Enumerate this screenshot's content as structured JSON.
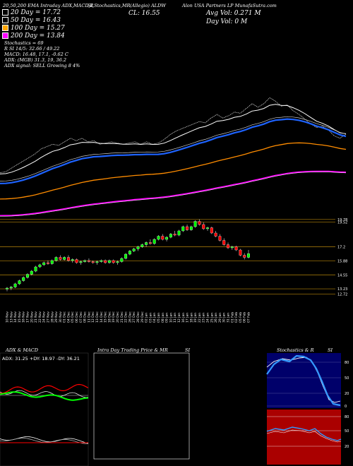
{
  "header": {
    "top_left": "20,50,200 EMA Intraday ADX,MACD,R",
    "top_mid": "SI,Stochastics,MR",
    "top_symbol": "(Allegio) ALDW",
    "top_right": "Alon USA Partners LP MunafaSutra.com",
    "close_label": "CL: 16.55",
    "avg_vol": "Avg Vol: 0.271 M",
    "day_vol": "Day Vol: 0   M"
  },
  "legend": [
    {
      "label": "20  Day = 17.72",
      "swatch": "#ffffff"
    },
    {
      "label": "50  Day = 16.43",
      "swatch": "#000000"
    },
    {
      "label": "100  Day = 15.27",
      "swatch": "#ffa500"
    },
    {
      "label": "200  Day = 13.84",
      "swatch": "#ff00ff"
    }
  ],
  "indicators": {
    "stochastics": "Stochastics = 69",
    "r_si": "R             SI 14/5: 32.66  / 49.22",
    "macd": "MACD: 16.48, 17.1, -0.62  C",
    "adx": "ADX:                        (MGB) 31.3, 19, 36.2",
    "adx_signal": "ADX  signal: SELL Growing 8 4%"
  },
  "panels": {
    "adx_title": "ADX  & MACD",
    "intraday_title": "Intra Day Trading Price  & MR",
    "intraday_si": "SI",
    "stoch_title": "Stochastics & R",
    "stoch_si": "SI",
    "adx_values": "ADX: 31.25 +DY: 18.97 -DY: 36.21"
  },
  "right_scale": {
    "labels": [
      "19.78",
      "19.52",
      "17.2",
      "15.88",
      "14.55",
      "13.23",
      "12.72"
    ],
    "stoch_ticks": [
      "80",
      "50",
      "20",
      "0"
    ],
    "rsi_ticks": [
      "80",
      "50",
      "20"
    ]
  },
  "colors": {
    "up": "#00ff00",
    "down": "#ff0000",
    "ema50": "#1e63ff",
    "ema100": "#ff8c00",
    "ema200": "#ff00ff",
    "grid": "#b8860b",
    "rsi_panel": "#aa0000",
    "stoch_panel": "#00006a"
  },
  "chart_data": {
    "type": "candlestick",
    "dates": [
      "10 Nov",
      "13 Nov",
      "14 Nov",
      "15 Nov",
      "16 Nov",
      "17 Nov",
      "20 Nov",
      "21 Nov",
      "22 Nov",
      "24 Nov",
      "27 Nov",
      "28 Nov",
      "29 Nov",
      "30 Nov",
      "01 Dec",
      "04 Dec",
      "05 Dec",
      "06 Dec",
      "07 Dec",
      "08 Dec",
      "11 Dec",
      "12 Dec",
      "13 Dec",
      "14 Dec",
      "15 Dec",
      "18 Dec",
      "19 Dec",
      "20 Dec",
      "21 Dec",
      "22 Dec",
      "26 Dec",
      "27 Dec",
      "28 Dec",
      "29 Dec",
      "02 Jan",
      "03 Jan",
      "04 Jan",
      "05 Jan",
      "08 Jan",
      "09 Jan",
      "10 Jan",
      "11 Jan",
      "12 Jan",
      "16 Jan",
      "17 Jan",
      "18 Jan",
      "19 Jan",
      "22 Jan",
      "23 Jan",
      "24 Jan",
      "25 Jan",
      "26 Jan",
      "29 Jan",
      "30 Jan",
      "31 Jan",
      "01 Feb",
      "02 Feb",
      "05 Feb",
      "06 Feb",
      "07 Feb"
    ],
    "candles": [
      {
        "o": 13.2,
        "h": 13.4,
        "l": 13.0,
        "c": 13.3
      },
      {
        "o": 13.3,
        "h": 13.5,
        "l": 13.1,
        "c": 13.4
      },
      {
        "o": 13.4,
        "h": 13.8,
        "l": 13.3,
        "c": 13.7
      },
      {
        "o": 13.7,
        "h": 14.1,
        "l": 13.6,
        "c": 14.0
      },
      {
        "o": 14.0,
        "h": 14.4,
        "l": 13.9,
        "c": 14.3
      },
      {
        "o": 14.3,
        "h": 14.7,
        "l": 14.2,
        "c": 14.6
      },
      {
        "o": 14.6,
        "h": 15.0,
        "l": 14.5,
        "c": 14.9
      },
      {
        "o": 14.9,
        "h": 15.4,
        "l": 14.8,
        "c": 15.3
      },
      {
        "o": 15.3,
        "h": 15.6,
        "l": 15.2,
        "c": 15.5
      },
      {
        "o": 15.5,
        "h": 15.8,
        "l": 15.4,
        "c": 15.7
      },
      {
        "o": 15.7,
        "h": 15.9,
        "l": 15.5,
        "c": 15.6
      },
      {
        "o": 15.6,
        "h": 16.0,
        "l": 15.5,
        "c": 15.9
      },
      {
        "o": 15.9,
        "h": 16.3,
        "l": 15.8,
        "c": 16.2
      },
      {
        "o": 16.2,
        "h": 16.4,
        "l": 15.9,
        "c": 16.0
      },
      {
        "o": 16.0,
        "h": 16.3,
        "l": 15.9,
        "c": 16.2
      },
      {
        "o": 16.2,
        "h": 16.4,
        "l": 15.8,
        "c": 15.9
      },
      {
        "o": 15.9,
        "h": 16.1,
        "l": 15.7,
        "c": 16.0
      },
      {
        "o": 16.0,
        "h": 16.1,
        "l": 15.6,
        "c": 15.7
      },
      {
        "o": 15.7,
        "h": 15.9,
        "l": 15.5,
        "c": 15.8
      },
      {
        "o": 15.8,
        "h": 16.0,
        "l": 15.7,
        "c": 15.9
      },
      {
        "o": 15.9,
        "h": 16.1,
        "l": 15.7,
        "c": 15.8
      },
      {
        "o": 15.8,
        "h": 15.9,
        "l": 15.6,
        "c": 15.7
      },
      {
        "o": 15.7,
        "h": 15.9,
        "l": 15.5,
        "c": 15.8
      },
      {
        "o": 15.8,
        "h": 16.0,
        "l": 15.7,
        "c": 15.9
      },
      {
        "o": 15.9,
        "h": 16.0,
        "l": 15.6,
        "c": 15.7
      },
      {
        "o": 15.7,
        "h": 16.0,
        "l": 15.6,
        "c": 15.9
      },
      {
        "o": 15.9,
        "h": 16.0,
        "l": 15.6,
        "c": 15.7
      },
      {
        "o": 15.7,
        "h": 15.9,
        "l": 15.5,
        "c": 15.8
      },
      {
        "o": 15.8,
        "h": 16.2,
        "l": 15.7,
        "c": 16.1
      },
      {
        "o": 16.1,
        "h": 16.6,
        "l": 16.0,
        "c": 16.5
      },
      {
        "o": 16.5,
        "h": 16.9,
        "l": 16.4,
        "c": 16.8
      },
      {
        "o": 16.8,
        "h": 17.1,
        "l": 16.7,
        "c": 17.0
      },
      {
        "o": 17.0,
        "h": 17.3,
        "l": 16.8,
        "c": 17.2
      },
      {
        "o": 17.2,
        "h": 17.5,
        "l": 17.1,
        "c": 17.4
      },
      {
        "o": 17.4,
        "h": 17.7,
        "l": 17.2,
        "c": 17.6
      },
      {
        "o": 17.6,
        "h": 17.9,
        "l": 17.4,
        "c": 17.5
      },
      {
        "o": 17.5,
        "h": 18.0,
        "l": 17.4,
        "c": 17.9
      },
      {
        "o": 17.9,
        "h": 18.3,
        "l": 17.8,
        "c": 18.2
      },
      {
        "o": 18.2,
        "h": 18.4,
        "l": 17.8,
        "c": 17.9
      },
      {
        "o": 17.9,
        "h": 18.2,
        "l": 17.7,
        "c": 18.1
      },
      {
        "o": 18.1,
        "h": 18.5,
        "l": 18.0,
        "c": 18.4
      },
      {
        "o": 18.4,
        "h": 18.7,
        "l": 18.2,
        "c": 18.3
      },
      {
        "o": 18.3,
        "h": 18.8,
        "l": 18.2,
        "c": 18.7
      },
      {
        "o": 18.7,
        "h": 19.2,
        "l": 18.6,
        "c": 19.1
      },
      {
        "o": 19.1,
        "h": 19.3,
        "l": 18.7,
        "c": 18.8
      },
      {
        "o": 18.8,
        "h": 19.2,
        "l": 18.7,
        "c": 19.1
      },
      {
        "o": 19.1,
        "h": 19.7,
        "l": 19.0,
        "c": 19.6
      },
      {
        "o": 19.6,
        "h": 19.8,
        "l": 19.2,
        "c": 19.3
      },
      {
        "o": 19.3,
        "h": 19.5,
        "l": 18.8,
        "c": 18.9
      },
      {
        "o": 18.9,
        "h": 19.1,
        "l": 18.7,
        "c": 19.0
      },
      {
        "o": 19.0,
        "h": 19.1,
        "l": 18.4,
        "c": 18.5
      },
      {
        "o": 18.5,
        "h": 18.7,
        "l": 18.1,
        "c": 18.2
      },
      {
        "o": 18.2,
        "h": 18.4,
        "l": 17.7,
        "c": 17.8
      },
      {
        "o": 17.8,
        "h": 18.0,
        "l": 17.3,
        "c": 17.4
      },
      {
        "o": 17.4,
        "h": 17.6,
        "l": 17.0,
        "c": 17.1
      },
      {
        "o": 17.1,
        "h": 17.3,
        "l": 16.9,
        "c": 17.2
      },
      {
        "o": 17.2,
        "h": 17.3,
        "l": 16.8,
        "c": 16.9
      },
      {
        "o": 16.9,
        "h": 17.0,
        "l": 16.3,
        "c": 16.4
      },
      {
        "o": 16.4,
        "h": 16.6,
        "l": 16.0,
        "c": 16.2
      },
      {
        "o": 16.2,
        "h": 16.9,
        "l": 16.1,
        "c": 16.55
      }
    ],
    "ylim": [
      12.5,
      20.5
    ]
  }
}
